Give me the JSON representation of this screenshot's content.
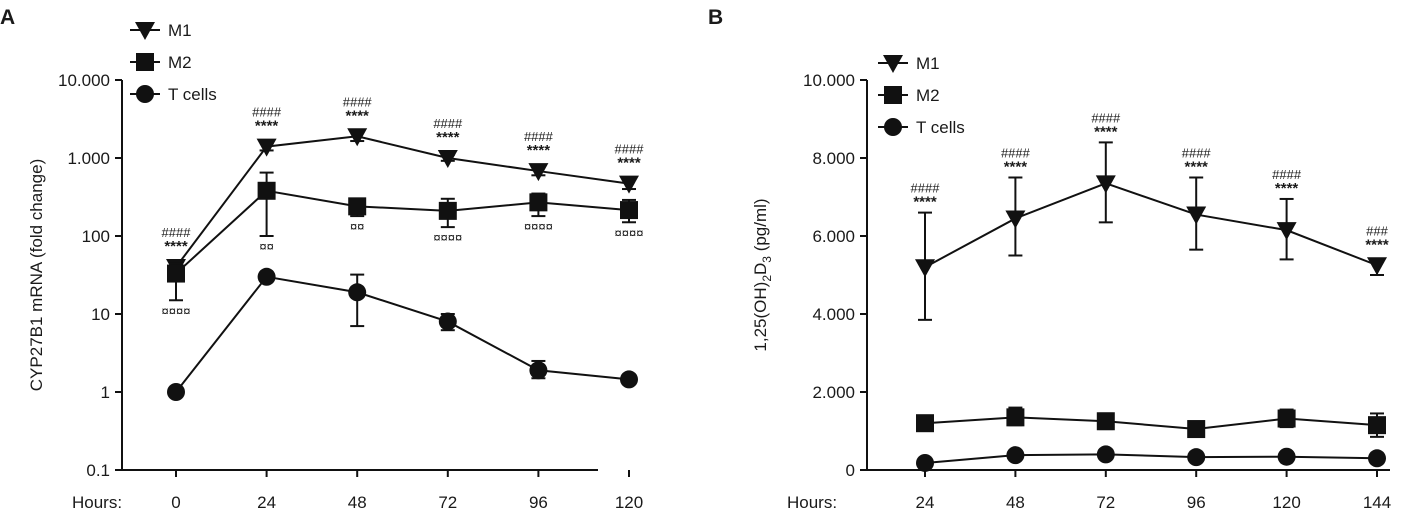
{
  "chart_data": [
    {
      "panel": "A",
      "type": "line",
      "yscale": "log",
      "ylabel": "CYP27B1 mRNA (fold change)",
      "xlabel_prefix": "Hours:",
      "categories": [
        "0",
        "24",
        "48",
        "72",
        "96",
        "120"
      ],
      "ylim": [
        0.1,
        10000
      ],
      "yticks": [
        {
          "value": 0.1,
          "label": "0.1"
        },
        {
          "value": 1,
          "label": "1"
        },
        {
          "value": 10,
          "label": "10"
        },
        {
          "value": 100,
          "label": "100"
        },
        {
          "value": 1000,
          "label": "1.000"
        },
        {
          "value": 10000,
          "label": "10.000"
        }
      ],
      "series": [
        {
          "name": "M1",
          "marker": "triangle-down",
          "values": [
            40,
            1400,
            1900,
            1000,
            680,
            470
          ],
          "err_low": [
            35,
            1250,
            1650,
            920,
            600,
            400
          ],
          "err_high": [
            45,
            1550,
            2150,
            1100,
            760,
            560
          ]
        },
        {
          "name": "M2",
          "marker": "square",
          "values": [
            33,
            380,
            240,
            210,
            270,
            215
          ],
          "err_low": [
            15,
            100,
            180,
            130,
            180,
            150
          ],
          "err_high": [
            45,
            650,
            300,
            300,
            350,
            290
          ]
        },
        {
          "name": "T cells",
          "marker": "circle",
          "values": [
            1,
            30,
            19,
            8,
            1.9,
            1.45
          ],
          "err_low": [
            1,
            28,
            7,
            6.2,
            1.5,
            1.35
          ],
          "err_high": [
            1,
            32,
            32,
            10,
            2.5,
            1.6
          ]
        }
      ],
      "annotations": [
        {
          "series": "M1",
          "stars": [
            "****",
            "****",
            "****",
            "****",
            "****",
            "****"
          ],
          "hashes": [
            "####",
            "####",
            "####",
            "####",
            "####",
            "####"
          ]
        },
        {
          "series": "M2",
          "marks": [
            "¤¤¤¤",
            "¤¤",
            "¤¤",
            "¤¤¤¤",
            "¤¤¤¤",
            "¤¤¤¤"
          ]
        }
      ],
      "legend": [
        "M1",
        "M2",
        "T cells"
      ],
      "legend_position": "top-left"
    },
    {
      "panel": "B",
      "type": "line",
      "yscale": "linear",
      "ylabel_parts": [
        "1,25(OH)",
        "2",
        "D",
        "3",
        " (pg/ml)"
      ],
      "xlabel_prefix": "Hours:",
      "categories": [
        "24",
        "48",
        "72",
        "96",
        "120",
        "144"
      ],
      "ylim": [
        0,
        10000
      ],
      "yticks": [
        {
          "value": 0,
          "label": "0"
        },
        {
          "value": 2000,
          "label": "2.000"
        },
        {
          "value": 4000,
          "label": "4.000"
        },
        {
          "value": 6000,
          "label": "6.000"
        },
        {
          "value": 8000,
          "label": "8.000"
        },
        {
          "value": 10000,
          "label": "10.000"
        }
      ],
      "series": [
        {
          "name": "M1",
          "marker": "triangle-down",
          "values": [
            5200,
            6450,
            7350,
            6550,
            6150,
            5250
          ],
          "err_low": [
            3850,
            5500,
            6350,
            5650,
            5400,
            5000
          ],
          "err_high": [
            6600,
            7500,
            8400,
            7500,
            6950,
            5400
          ]
        },
        {
          "name": "M2",
          "marker": "square",
          "values": [
            1200,
            1350,
            1250,
            1050,
            1320,
            1150
          ],
          "err_low": [
            1100,
            1150,
            1050,
            950,
            1100,
            850
          ],
          "err_high": [
            1280,
            1600,
            1450,
            1200,
            1550,
            1450
          ]
        },
        {
          "name": "T cells",
          "marker": "circle",
          "values": [
            180,
            380,
            400,
            330,
            340,
            300
          ],
          "err_low": [
            150,
            340,
            370,
            300,
            310,
            270
          ],
          "err_high": [
            210,
            420,
            440,
            360,
            370,
            330
          ]
        }
      ],
      "annotations": [
        {
          "series": "M1",
          "stars": [
            "****",
            "****",
            "****",
            "****",
            "****",
            "****"
          ],
          "hashes": [
            "####",
            "####",
            "####",
            "####",
            "####",
            "###"
          ]
        }
      ],
      "legend": [
        "M1",
        "M2",
        "T cells"
      ],
      "legend_position": "top-left"
    }
  ]
}
